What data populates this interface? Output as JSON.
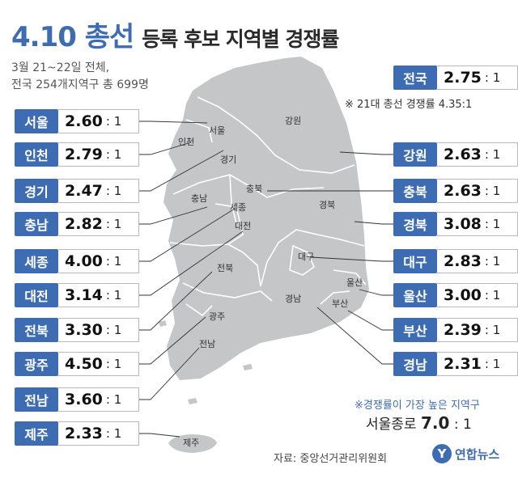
{
  "title": {
    "main": "4.10 총선",
    "sub": "등록 후보 지역별 경쟁률"
  },
  "info": {
    "line1": "3월 21~22일 전체,",
    "line2": "전국 254개지역구 총 699명"
  },
  "national": {
    "label": "전국",
    "value": "2.75",
    "unit": ": 1"
  },
  "note": "※ 21대 총선 경쟁률 4.35:1",
  "chart_data": {
    "type": "table",
    "unit": ": 1",
    "regions": [
      {
        "name": "서울",
        "value": 2.6,
        "display": "2.60"
      },
      {
        "name": "인천",
        "value": 2.79,
        "display": "2.79"
      },
      {
        "name": "경기",
        "value": 2.47,
        "display": "2.47"
      },
      {
        "name": "충남",
        "value": 2.82,
        "display": "2.82"
      },
      {
        "name": "세종",
        "value": 4.0,
        "display": "4.00"
      },
      {
        "name": "대전",
        "value": 3.14,
        "display": "3.14"
      },
      {
        "name": "전북",
        "value": 3.3,
        "display": "3.30"
      },
      {
        "name": "광주",
        "value": 4.5,
        "display": "4.50"
      },
      {
        "name": "전남",
        "value": 3.6,
        "display": "3.60"
      },
      {
        "name": "제주",
        "value": 2.33,
        "display": "2.33"
      },
      {
        "name": "강원",
        "value": 2.63,
        "display": "2.63"
      },
      {
        "name": "충북",
        "value": 2.63,
        "display": "2.63"
      },
      {
        "name": "경북",
        "value": 3.08,
        "display": "3.08"
      },
      {
        "name": "대구",
        "value": 2.83,
        "display": "2.83"
      },
      {
        "name": "울산",
        "value": 3.0,
        "display": "3.00"
      },
      {
        "name": "부산",
        "value": 2.39,
        "display": "2.39"
      },
      {
        "name": "경남",
        "value": 2.31,
        "display": "2.31"
      }
    ]
  },
  "map_labels": [
    "서울",
    "인천",
    "경기",
    "강원",
    "충북",
    "충남",
    "세종",
    "대전",
    "경북",
    "대구",
    "전북",
    "울산",
    "부산",
    "경남",
    "광주",
    "전남",
    "제주"
  ],
  "callout": {
    "title": "※경쟁률이 가장 높은 지역구",
    "district": "서울종로",
    "value": "7.0",
    "unit": ": 1"
  },
  "source": "자료: 중앙선거관리위원회",
  "logo": {
    "symbol": "Y",
    "text": "연합뉴스"
  },
  "colors": {
    "accent": "#3d6cb3",
    "map": "#c5c6c8",
    "border": "#ffffff",
    "leader": "#333333"
  }
}
